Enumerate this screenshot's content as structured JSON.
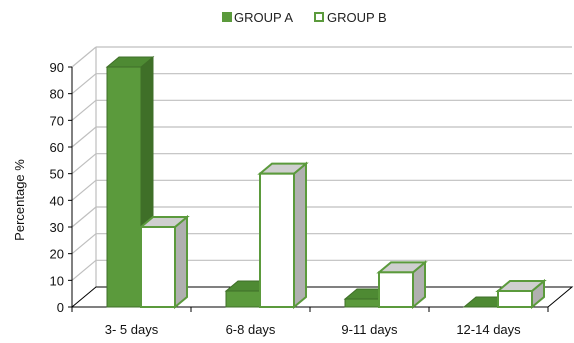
{
  "chart_data": {
    "type": "bar",
    "categories": [
      "3- 5 days",
      "6-8 days",
      "9-11 days",
      "12-14 days"
    ],
    "series": [
      {
        "name": "GROUP A",
        "values": [
          90,
          6,
          3,
          0
        ]
      },
      {
        "name": "GROUP B",
        "values": [
          30,
          50,
          13,
          6
        ]
      }
    ],
    "ylabel": "Percentage %",
    "xlabel": "",
    "ylim": [
      0,
      90
    ],
    "yticks": [
      0,
      10,
      20,
      30,
      40,
      50,
      60,
      70,
      80,
      90
    ],
    "legend_position": "top",
    "grid": true,
    "style": "3d-clustered-column",
    "colors": {
      "group_a_face": "#5b9a3c",
      "group_a_side": "#3f6f28",
      "group_a_top": "#4e8a33",
      "group_b_face": "#ffffff",
      "group_b_border": "#5b9a3c",
      "group_b_side": "#b0b0b0",
      "group_b_top": "#cfcfcf",
      "grid": "#bfbfbf",
      "axis": "#000000"
    }
  }
}
